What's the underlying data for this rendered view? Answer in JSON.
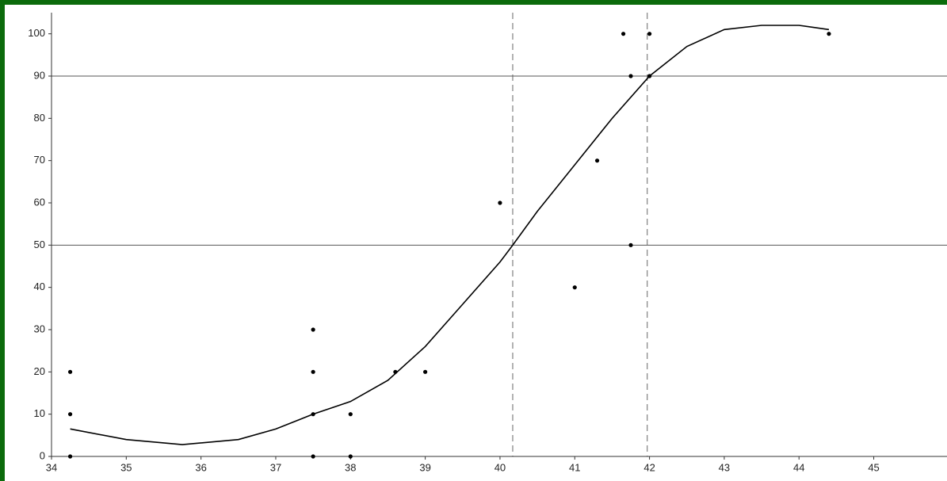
{
  "chart_data": {
    "type": "scatter",
    "xlim": [
      34,
      45.98
    ],
    "ylim": [
      0,
      105
    ],
    "xticks": [
      34,
      35,
      36,
      37,
      38,
      39,
      40,
      41,
      42,
      43,
      44,
      45
    ],
    "yticks": [
      0,
      10,
      20,
      30,
      40,
      50,
      60,
      70,
      80,
      90,
      100
    ],
    "points": {
      "color": "#000000",
      "x": [
        34.25,
        34.25,
        34.25,
        37.5,
        37.5,
        37.5,
        37.5,
        38,
        38,
        38.6,
        39,
        40,
        41,
        41.3,
        41.65,
        41.75,
        41.75,
        42,
        42,
        44.4
      ],
      "y": [
        20,
        10,
        0,
        30,
        20,
        10,
        0,
        10,
        0,
        20,
        20,
        60,
        40,
        70,
        100,
        90,
        50,
        100,
        90,
        100
      ]
    },
    "curve": {
      "color": "#000000",
      "x": [
        34.25,
        35,
        35.75,
        36.5,
        37,
        37.5,
        38,
        38.5,
        39,
        39.5,
        40,
        40.17,
        40.5,
        41,
        41.5,
        42,
        42.5,
        43,
        43.5,
        44,
        44.4
      ],
      "y": [
        6.5,
        4,
        2.8,
        4,
        6.5,
        10,
        13,
        18,
        26,
        36,
        46,
        50,
        58,
        69,
        80,
        90,
        97,
        101,
        102,
        102,
        101
      ]
    },
    "hlines": [
      50,
      90
    ],
    "vlines": [
      40.17,
      41.97
    ]
  }
}
